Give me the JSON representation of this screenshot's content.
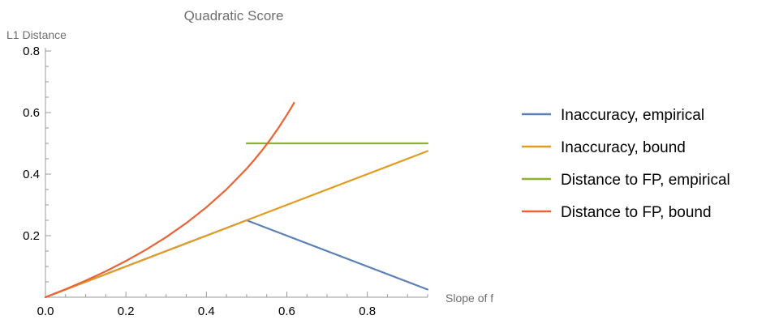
{
  "chart_data": {
    "type": "line",
    "title": "Quadratic Score",
    "xlabel": "Slope of f",
    "ylabel": "L1 Distance",
    "xlim": [
      0,
      0.95
    ],
    "ylim": [
      0,
      0.8
    ],
    "x_ticks": [
      {
        "value": 0.0,
        "label": "0.0"
      },
      {
        "value": 0.2,
        "label": "0.2"
      },
      {
        "value": 0.4,
        "label": "0.4"
      },
      {
        "value": 0.6,
        "label": "0.6"
      },
      {
        "value": 0.8,
        "label": "0.8"
      }
    ],
    "x_minor_step": 0.05,
    "y_ticks": [
      {
        "value": 0.2,
        "label": "0.2"
      },
      {
        "value": 0.4,
        "label": "0.4"
      },
      {
        "value": 0.6,
        "label": "0.6"
      },
      {
        "value": 0.8,
        "label": "0.8"
      }
    ],
    "y_minor_step": 0.05,
    "grid": false,
    "legend_position": "right",
    "series": [
      {
        "name": "Inaccuracy, empirical",
        "color": "#5E81B5",
        "x": [
          0,
          0.5,
          0.95
        ],
        "y": [
          0,
          0.25,
          0.025
        ]
      },
      {
        "name": "Inaccuracy, bound",
        "color": "#E19C24",
        "x": [
          0,
          0.95
        ],
        "y": [
          0,
          0.475
        ]
      },
      {
        "name": "Distance to FP, empirical",
        "color": "#8FB032",
        "x": [
          0.5,
          0.95
        ],
        "y": [
          0.5,
          0.5
        ]
      },
      {
        "name": "Distance to FP, bound",
        "color": "#EB6235",
        "x": [
          0,
          0.05,
          0.1,
          0.15,
          0.2,
          0.25,
          0.3,
          0.35,
          0.4,
          0.45,
          0.5,
          0.52,
          0.54,
          0.56,
          0.58,
          0.6,
          0.61,
          0.618
        ],
        "y": [
          0,
          0.0259,
          0.0539,
          0.0843,
          0.1177,
          0.1545,
          0.1953,
          0.2409,
          0.2923,
          0.3506,
          0.4174,
          0.4477,
          0.4799,
          0.5144,
          0.5517,
          0.5922,
          0.6137,
          0.6318
        ]
      }
    ]
  }
}
